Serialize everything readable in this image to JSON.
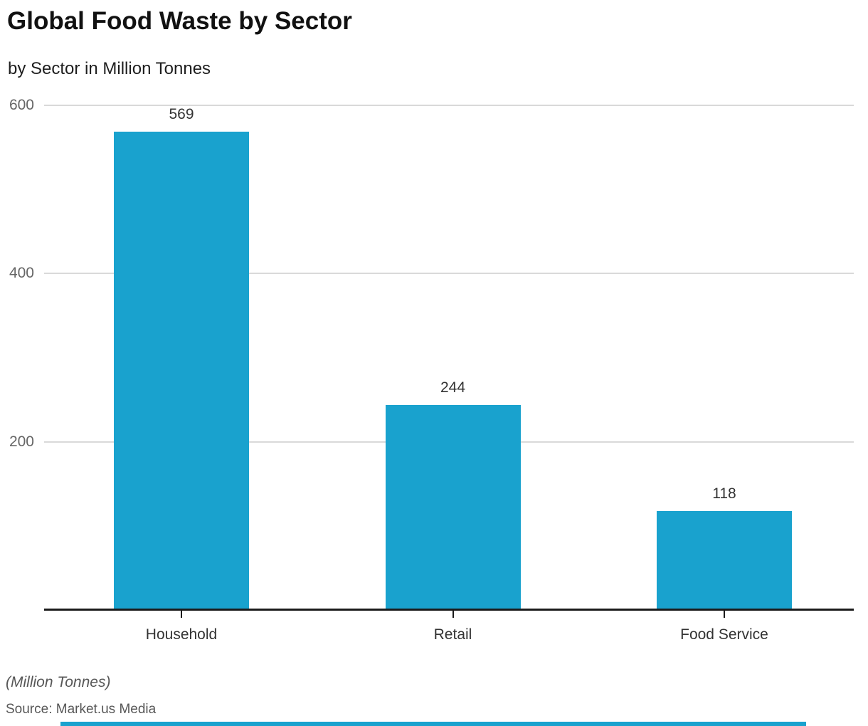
{
  "header": {
    "title": "Global Food Waste by Sector",
    "subtitle": "by Sector in Million Tonnes"
  },
  "chart_data": {
    "type": "bar",
    "title": "Global Food Waste by Sector",
    "subtitle": "by Sector in Million Tonnes",
    "categories": [
      "Household",
      "Retail",
      "Food Service"
    ],
    "values": [
      569,
      244,
      118
    ],
    "yticks": [
      200,
      400,
      600
    ],
    "ylim": [
      0,
      600
    ],
    "grid": "horizontal",
    "legend": "none",
    "bar_color": "#19a2ce"
  },
  "footer": {
    "unit_note": "(Million Tonnes)",
    "source": "Source: Market.us Media"
  },
  "colors": {
    "accent": "#19a2ce",
    "gridline": "#d9d9d9",
    "axis": "#1b1b1b",
    "tick_label": "#666666",
    "label_text": "#333333"
  }
}
